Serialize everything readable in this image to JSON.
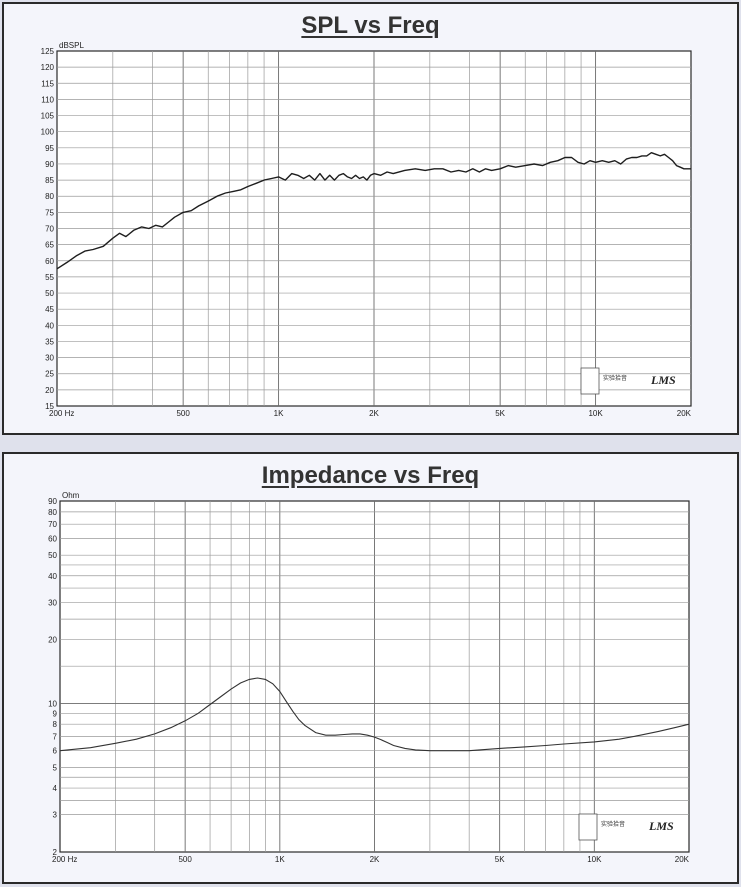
{
  "chart_data": [
    {
      "type": "line",
      "title": "SPL vs Freq",
      "ylabel": "dBSPL",
      "x_scale": "log",
      "xlim": [
        200,
        20000
      ],
      "ylim": [
        15,
        125
      ],
      "x_ticks": [
        {
          "value": 200,
          "label": "200  Hz"
        },
        {
          "value": 500,
          "label": "500"
        },
        {
          "value": 1000,
          "label": "1K"
        },
        {
          "value": 2000,
          "label": "2K"
        },
        {
          "value": 5000,
          "label": "5K"
        },
        {
          "value": 10000,
          "label": "10K"
        },
        {
          "value": 20000,
          "label": "20K"
        }
      ],
      "y_ticks": [
        {
          "value": 125,
          "label": "125"
        },
        {
          "value": 120,
          "label": "120"
        },
        {
          "value": 115,
          "label": "115"
        },
        {
          "value": 110,
          "label": "110"
        },
        {
          "value": 105,
          "label": "105"
        },
        {
          "value": 100,
          "label": "100"
        },
        {
          "value": 95,
          "label": "95"
        },
        {
          "value": 90,
          "label": "90"
        },
        {
          "value": 85,
          "label": "85"
        },
        {
          "value": 80,
          "label": "80"
        },
        {
          "value": 75,
          "label": "75"
        },
        {
          "value": 70,
          "label": "70"
        },
        {
          "value": 65,
          "label": "65"
        },
        {
          "value": 60,
          "label": "60"
        },
        {
          "value": 55,
          "label": "55"
        },
        {
          "value": 50,
          "label": "50"
        },
        {
          "value": 45,
          "label": "45"
        },
        {
          "value": 40,
          "label": "40"
        },
        {
          "value": 35,
          "label": "35"
        },
        {
          "value": 30,
          "label": "30"
        },
        {
          "value": 25,
          "label": "25"
        },
        {
          "value": 20,
          "label": "20"
        },
        {
          "value": 15,
          "label": "15"
        }
      ],
      "grid": true,
      "series": [
        {
          "x": [
            200,
            215,
            230,
            245,
            260,
            280,
            300,
            315,
            330,
            350,
            370,
            390,
            410,
            430,
            450,
            470,
            500,
            530,
            560,
            600,
            640,
            680,
            720,
            760,
            800,
            850,
            900,
            950,
            1000,
            1050,
            1100,
            1150,
            1200,
            1250,
            1300,
            1350,
            1400,
            1450,
            1500,
            1550,
            1600,
            1650,
            1700,
            1750,
            1800,
            1850,
            1900,
            1950,
            2000,
            2100,
            2200,
            2300,
            2500,
            2700,
            2900,
            3100,
            3300,
            3500,
            3700,
            3900,
            4100,
            4300,
            4500,
            4700,
            5000,
            5300,
            5600,
            6000,
            6400,
            6800,
            7200,
            7600,
            8000,
            8400,
            8800,
            9200,
            9600,
            10000,
            10500,
            11000,
            11500,
            12000,
            12500,
            13000,
            13500,
            14000,
            14500,
            15000,
            15500,
            16000,
            16500,
            17000,
            17500,
            18000,
            18500,
            19000,
            20000
          ],
          "y": [
            57.5,
            59.5,
            61.5,
            63,
            63.5,
            64.5,
            67,
            68.5,
            67.5,
            69.5,
            70.5,
            70,
            71,
            70.5,
            72,
            73.5,
            75,
            75.5,
            77,
            78.5,
            80,
            81,
            81.5,
            82,
            83,
            84,
            85,
            85.5,
            86,
            85,
            87,
            86.5,
            85.5,
            86.5,
            85,
            87,
            85,
            86.5,
            85,
            86.5,
            87,
            86,
            85.5,
            86.5,
            85.5,
            86,
            85,
            86.5,
            87,
            86.5,
            87.5,
            87,
            88,
            88.5,
            88,
            88.5,
            88.5,
            87.5,
            88,
            87.5,
            88.5,
            87.5,
            88.5,
            88,
            88.5,
            89.5,
            89,
            89.5,
            90,
            89.5,
            90.5,
            91,
            92,
            92,
            90.5,
            90,
            91,
            90.5,
            91,
            90.5,
            91,
            90,
            91.5,
            92,
            92,
            92.5,
            92.5,
            93.5,
            93,
            92.5,
            93,
            92,
            91,
            89.5,
            89,
            88.5,
            88.5
          ]
        }
      ]
    },
    {
      "type": "line",
      "title": "Impedance vs Freq",
      "ylabel": "Ohm",
      "x_scale": "log",
      "y_scale": "log",
      "xlim": [
        200,
        20000
      ],
      "ylim": [
        2,
        90
      ],
      "x_ticks": [
        {
          "value": 200,
          "label": "200  Hz"
        },
        {
          "value": 500,
          "label": "500"
        },
        {
          "value": 1000,
          "label": "1K"
        },
        {
          "value": 2000,
          "label": "2K"
        },
        {
          "value": 5000,
          "label": "5K"
        },
        {
          "value": 10000,
          "label": "10K"
        },
        {
          "value": 20000,
          "label": "20K"
        }
      ],
      "y_ticks": [
        {
          "value": 90,
          "label": "90"
        },
        {
          "value": 80,
          "label": "80"
        },
        {
          "value": 70,
          "label": "70"
        },
        {
          "value": 60,
          "label": "60"
        },
        {
          "value": 50,
          "label": "50"
        },
        {
          "value": 40,
          "label": "40"
        },
        {
          "value": 30,
          "label": "30"
        },
        {
          "value": 20,
          "label": "20"
        },
        {
          "value": 10,
          "label": "10"
        },
        {
          "value": 9,
          "label": "9"
        },
        {
          "value": 8,
          "label": "8"
        },
        {
          "value": 7,
          "label": "7"
        },
        {
          "value": 6,
          "label": "6"
        },
        {
          "value": 5,
          "label": "5"
        },
        {
          "value": 4,
          "label": "4"
        },
        {
          "value": 3,
          "label": "3"
        },
        {
          "value": 2,
          "label": "2"
        }
      ],
      "grid": true,
      "series": [
        {
          "x": [
            200,
            250,
            300,
            350,
            400,
            450,
            500,
            550,
            600,
            650,
            700,
            750,
            800,
            850,
            900,
            950,
            1000,
            1050,
            1100,
            1150,
            1200,
            1300,
            1400,
            1500,
            1600,
            1700,
            1800,
            1900,
            2000,
            2100,
            2200,
            2300,
            2500,
            2700,
            3000,
            3500,
            4000,
            5000,
            6000,
            7000,
            8000,
            10000,
            12000,
            14000,
            16000,
            18000,
            20000
          ],
          "y": [
            6.0,
            6.2,
            6.5,
            6.8,
            7.2,
            7.7,
            8.3,
            9.0,
            9.9,
            10.8,
            11.7,
            12.5,
            13.0,
            13.2,
            13.0,
            12.4,
            11.4,
            10.2,
            9.2,
            8.4,
            7.9,
            7.3,
            7.1,
            7.1,
            7.15,
            7.2,
            7.2,
            7.1,
            6.95,
            6.75,
            6.55,
            6.35,
            6.15,
            6.05,
            6.0,
            6.0,
            6.0,
            6.15,
            6.25,
            6.35,
            6.45,
            6.6,
            6.8,
            7.1,
            7.4,
            7.7,
            8.0
          ]
        }
      ]
    }
  ],
  "logos": [
    {
      "caption": "实验拾音",
      "mark": "LMS"
    },
    {
      "caption": "实验拾音",
      "mark": "LMS"
    }
  ]
}
